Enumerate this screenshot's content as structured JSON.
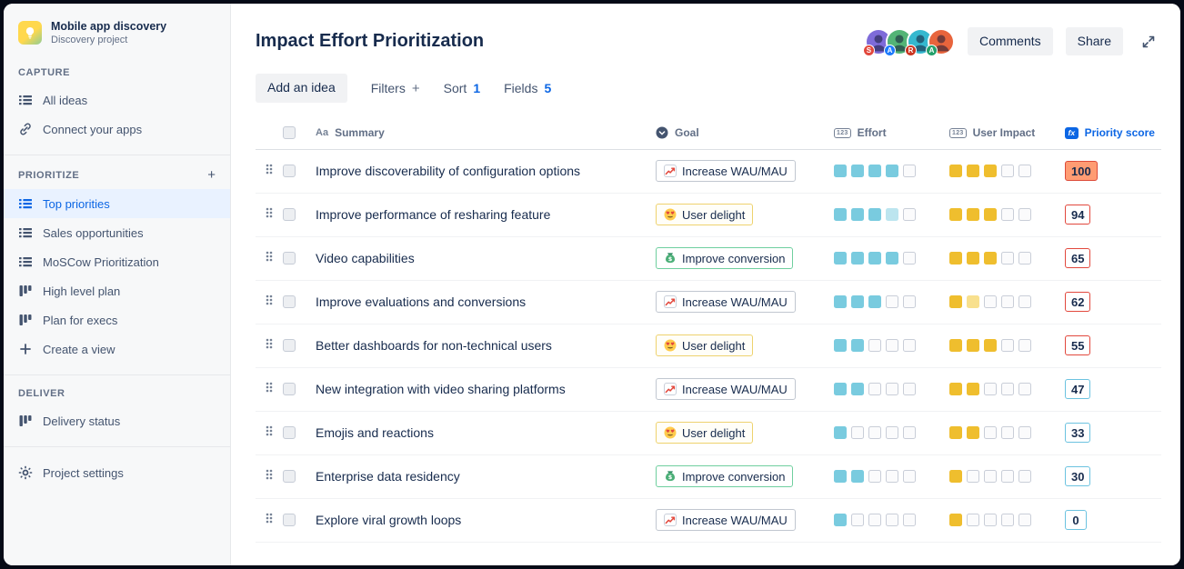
{
  "colors": {
    "accent_blue": "#0C66E4",
    "selected_item_bg": "#E9F2FF",
    "effort_fill": "#79CBDF",
    "impact_fill": "#EFBE2E",
    "score_high_border": "#E2483D",
    "score_high_bg": "#FF9C73",
    "score_low_border": "#6CC3E0",
    "sidebar_bg": "#F7F8F9"
  },
  "sidebar": {
    "project": {
      "name": "Mobile app discovery",
      "subtitle": "Discovery project"
    },
    "sections": [
      {
        "label": "CAPTURE",
        "add": false,
        "items": [
          {
            "label": "All ideas",
            "icon": "list",
            "selected": false
          },
          {
            "label": "Connect your apps",
            "icon": "link",
            "selected": false
          }
        ]
      },
      {
        "label": "PRIORITIZE",
        "add": true,
        "add_label": "+",
        "items": [
          {
            "label": "Top priorities",
            "icon": "list",
            "selected": true
          },
          {
            "label": "Sales opportunities",
            "icon": "list",
            "selected": false
          },
          {
            "label": "MoSCow Prioritization",
            "icon": "list",
            "selected": false
          },
          {
            "label": "High level plan",
            "icon": "board",
            "selected": false
          },
          {
            "label": "Plan for execs",
            "icon": "board",
            "selected": false
          },
          {
            "label": "Create a view",
            "icon": "plus",
            "selected": false
          }
        ]
      },
      {
        "label": "DELIVER",
        "add": false,
        "items": [
          {
            "label": "Delivery status",
            "icon": "board",
            "selected": false
          }
        ]
      }
    ],
    "footer": {
      "label": "Project settings",
      "icon": "gear"
    }
  },
  "header": {
    "title": "Impact Effort Prioritization",
    "comments": "Comments",
    "share": "Share",
    "avatars": [
      {
        "badge": "S",
        "bg": "#7E6BD9",
        "badge_bg": "#E2483D"
      },
      {
        "badge": "A",
        "bg": "#53B476",
        "badge_bg": "#1D7AFC"
      },
      {
        "badge": "R",
        "bg": "#35B8CF",
        "badge_bg": "#CA3521"
      },
      {
        "badge": "A",
        "bg": "#E8643C",
        "badge_bg": "#22A06B"
      }
    ]
  },
  "toolbar": {
    "add_idea": "Add an idea",
    "filters": "Filters",
    "filters_plus": "+",
    "sort": "Sort",
    "sort_count": "1",
    "fields": "Fields",
    "fields_count": "5"
  },
  "table": {
    "headers": {
      "summary": "Summary",
      "goal": "Goal",
      "effort": "Effort",
      "impact": "User Impact",
      "score": "Priority score"
    },
    "header_icons": {
      "summary": "Aa",
      "effort": "123",
      "impact": "123",
      "score": "fx"
    },
    "rows": [
      {
        "summary": "Improve discoverability of configuration options",
        "goal": "Increase WAU/MAU",
        "goal_type": "wau",
        "effort": 4,
        "effort_partial": false,
        "impact": 3,
        "impact_partial": false,
        "score": "100",
        "score_style": "filled"
      },
      {
        "summary": "Improve performance of resharing feature",
        "goal": "User delight",
        "goal_type": "delight",
        "effort": 4,
        "effort_partial": true,
        "impact": 3,
        "impact_partial": false,
        "score": "94",
        "score_style": "red"
      },
      {
        "summary": "Video capabilities",
        "goal": "Improve conversion",
        "goal_type": "conversion",
        "effort": 4,
        "effort_partial": false,
        "impact": 3,
        "impact_partial": false,
        "score": "65",
        "score_style": "red"
      },
      {
        "summary": "Improve evaluations and conversions",
        "goal": "Increase WAU/MAU",
        "goal_type": "wau",
        "effort": 3,
        "effort_partial": false,
        "impact": 2,
        "impact_partial": true,
        "score": "62",
        "score_style": "red"
      },
      {
        "summary": "Better dashboards for non-technical users",
        "goal": "User delight",
        "goal_type": "delight",
        "effort": 2,
        "effort_partial": false,
        "impact": 3,
        "impact_partial": false,
        "score": "55",
        "score_style": "red"
      },
      {
        "summary": "New integration with video sharing platforms",
        "goal": "Increase WAU/MAU",
        "goal_type": "wau",
        "effort": 2,
        "effort_partial": false,
        "impact": 2,
        "impact_partial": false,
        "score": "47",
        "score_style": "teal"
      },
      {
        "summary": "Emojis and reactions",
        "goal": "User delight",
        "goal_type": "delight",
        "effort": 1,
        "effort_partial": false,
        "impact": 2,
        "impact_partial": false,
        "score": "33",
        "score_style": "teal"
      },
      {
        "summary": "Enterprise data residency",
        "goal": "Improve conversion",
        "goal_type": "conversion",
        "effort": 2,
        "effort_partial": false,
        "impact": 1,
        "impact_partial": false,
        "score": "30",
        "score_style": "teal"
      },
      {
        "summary": "Explore viral growth loops",
        "goal": "Increase WAU/MAU",
        "goal_type": "wau",
        "effort": 1,
        "effort_partial": false,
        "impact": 1,
        "impact_partial": false,
        "score": "0",
        "score_style": "teal"
      }
    ]
  }
}
